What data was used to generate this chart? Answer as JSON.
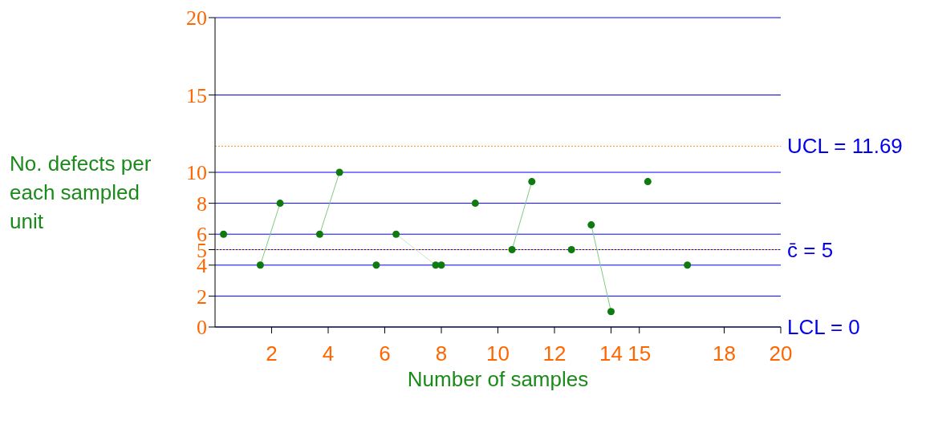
{
  "chart_data": {
    "type": "scatter",
    "xlabel": "Number of samples",
    "ylabel": "No. defects per each sampled unit",
    "xlim": [
      0,
      20
    ],
    "ylim": [
      0,
      20
    ],
    "xticks": [
      2,
      4,
      6,
      8,
      10,
      12,
      14,
      15,
      18,
      20
    ],
    "yticks": [
      0,
      2,
      4,
      5,
      6,
      8,
      10,
      15,
      20
    ],
    "grid": "y",
    "legend": false,
    "series": [
      {
        "marker": "circle",
        "color": "#0f7a0f",
        "x": [
          0.3,
          1.6,
          2.3,
          3.7,
          4.4,
          5.7,
          6.4,
          7.8,
          8.0,
          9.2,
          10.5,
          11.2,
          12.6,
          13.3,
          14.0,
          15.3,
          16.7
        ],
        "values": [
          6,
          4,
          8,
          6,
          10,
          4,
          6,
          4,
          4,
          8,
          5,
          9.4,
          5,
          6.6,
          1,
          9.4,
          4
        ]
      },
      {
        "type": "line",
        "marker": "none",
        "color": "#7fc97f",
        "x": [
          1.6,
          2.3
        ],
        "values": [
          4,
          8
        ]
      },
      {
        "type": "line",
        "marker": "none",
        "color": "#7fc97f",
        "x": [
          3.7,
          4.4
        ],
        "values": [
          6,
          10
        ]
      },
      {
        "type": "line",
        "marker": "none",
        "color": "#c8e6c8",
        "x": [
          6.4,
          7.8
        ],
        "values": [
          6,
          4
        ]
      },
      {
        "type": "line",
        "marker": "none",
        "color": "#7fc97f",
        "x": [
          10.5,
          11.2
        ],
        "values": [
          5,
          9.4
        ]
      },
      {
        "type": "line",
        "marker": "none",
        "color": "#7fc97f",
        "x": [
          13.3,
          14.0
        ],
        "values": [
          6.6,
          1
        ]
      }
    ],
    "ref_lines": [
      {
        "axis": "y",
        "value": 11.69,
        "label": "UCL = 11.69",
        "color": "#ff8c1a",
        "line_style": "dotted"
      },
      {
        "axis": "y",
        "value": 5,
        "label": "c̄ = 5",
        "color": "#ff8c1a",
        "line_style": "dotted"
      }
    ],
    "annotations": [
      "LCL = 0"
    ]
  }
}
